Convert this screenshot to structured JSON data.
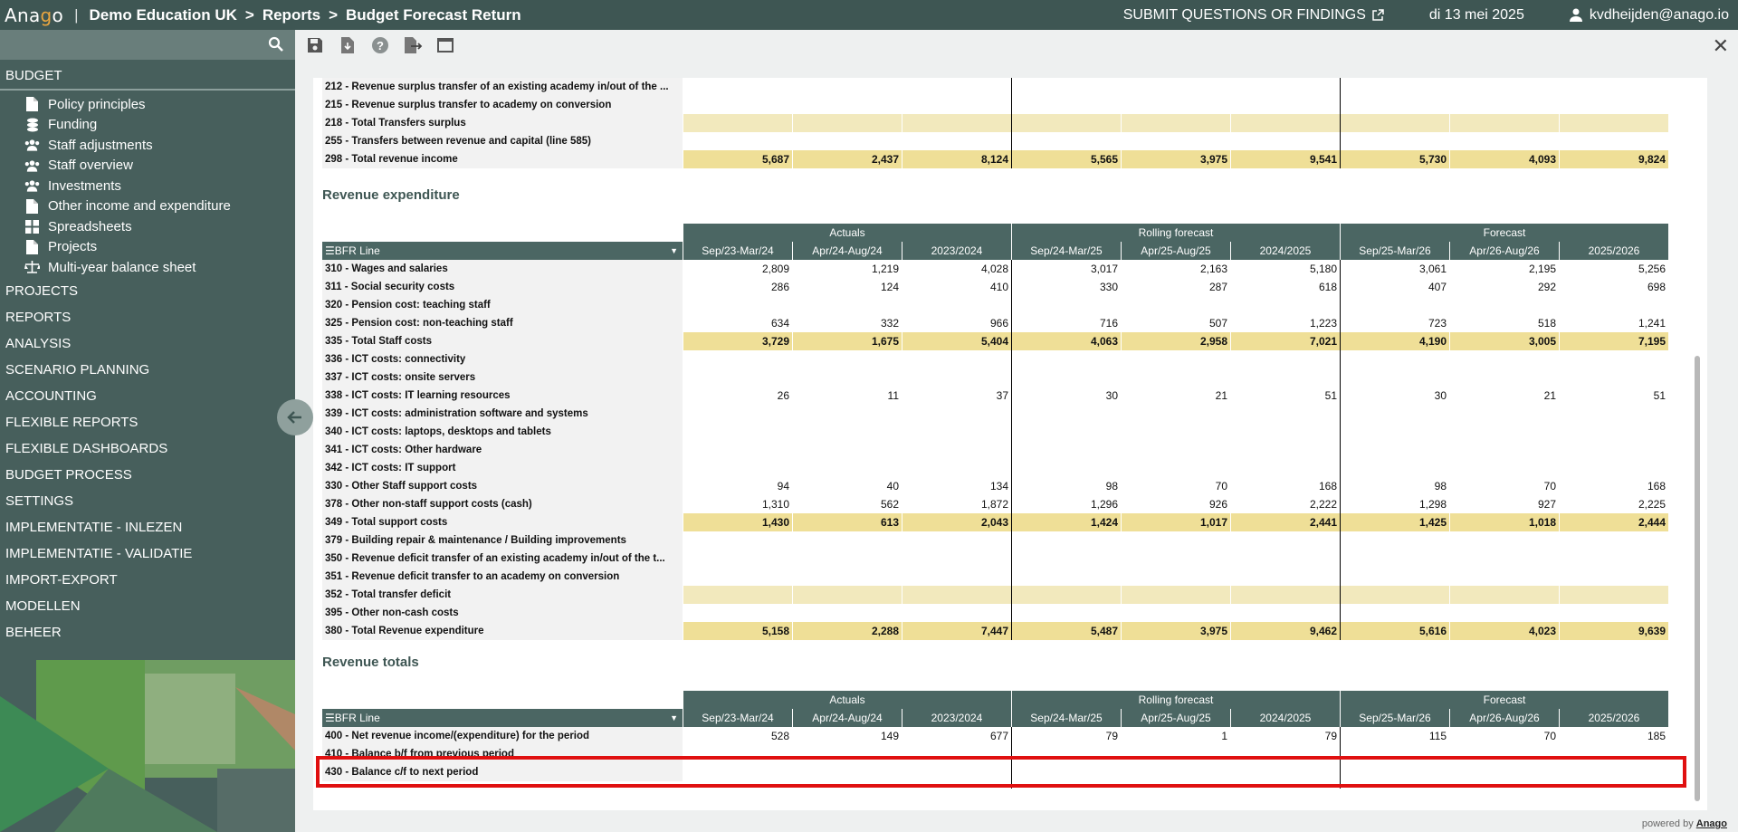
{
  "topbar": {
    "logo_pre": "Ana",
    "logo_o": "g",
    "logo_post": "o",
    "separator": "|",
    "crumb1": "Demo Education UK",
    "crumb2": "Reports",
    "crumb3": "Budget Forecast Return",
    "chevron": ">",
    "submit": "SUBMIT QUESTIONS OR FINDINGS",
    "date": "di 13 mei 2025",
    "user": "kvdheijden@anago.io"
  },
  "sidebar": {
    "section": "BUDGET",
    "items": [
      {
        "label": "Policy principles",
        "icon": "document-icon"
      },
      {
        "label": "Funding",
        "icon": "coins-icon"
      },
      {
        "label": "Staff adjustments",
        "icon": "people-icon"
      },
      {
        "label": "Staff overview",
        "icon": "people-icon"
      },
      {
        "label": "Investments",
        "icon": "people-icon"
      },
      {
        "label": "Other income and expenditure",
        "icon": "document-icon"
      },
      {
        "label": "Spreadsheets",
        "icon": "grid-icon"
      },
      {
        "label": "Projects",
        "icon": "document-icon"
      },
      {
        "label": "Multi-year balance sheet",
        "icon": "scale-icon"
      }
    ],
    "top_items": [
      "PROJECTS",
      "REPORTS",
      "ANALYSIS",
      "SCENARIO PLANNING",
      "ACCOUNTING",
      "FLEXIBLE REPORTS",
      "FLEXIBLE DASHBOARDS",
      "BUDGET PROCESS",
      "SETTINGS",
      "IMPLEMENTATIE - INLEZEN",
      "IMPLEMENTATIE - VALIDATIE",
      "IMPORT-EXPORT",
      "MODELLEN",
      "BEHEER"
    ]
  },
  "toolbar": {
    "close": "✕"
  },
  "footer": {
    "powered": "powered by",
    "brand": "Anago"
  },
  "table": {
    "groups": [
      "Actuals",
      "Rolling forecast",
      "Forecast"
    ],
    "columns": [
      "Sep/23-Mar/24",
      "Apr/24-Aug/24",
      "2023/2024",
      "Sep/24-Mar/25",
      "Apr/25-Aug/25",
      "2024/2025",
      "Sep/25-Mar/26",
      "Apr/26-Aug/26",
      "2025/2026"
    ],
    "bfr_label": "☰BFR Line",
    "income_rows": [
      {
        "label": "212 - Revenue surplus transfer of an existing academy in/out of the ...",
        "values": [
          "",
          "",
          "",
          "",
          "",
          "",
          "",
          "",
          ""
        ],
        "kind": "plain"
      },
      {
        "label": "215 - Revenue surplus transfer to academy on conversion",
        "values": [
          "",
          "",
          "",
          "",
          "",
          "",
          "",
          "",
          ""
        ],
        "kind": "plain"
      },
      {
        "label": "218 - Total Transfers surplus",
        "values": [
          "",
          "",
          "",
          "",
          "",
          "",
          "",
          "",
          ""
        ],
        "kind": "totalempty"
      },
      {
        "label": "255 - Transfers between revenue and capital (line 585)",
        "values": [
          "",
          "",
          "",
          "",
          "",
          "",
          "",
          "",
          ""
        ],
        "kind": "plain"
      },
      {
        "label": "298 - Total revenue income",
        "values": [
          "5,687",
          "2,437",
          "8,124",
          "5,565",
          "3,975",
          "9,541",
          "5,730",
          "4,093",
          "9,824"
        ],
        "kind": "total"
      }
    ],
    "expenditure_title": "Revenue expenditure",
    "expenditure_rows": [
      {
        "label": "310 - Wages and salaries",
        "values": [
          "2,809",
          "1,219",
          "4,028",
          "3,017",
          "2,163",
          "5,180",
          "3,061",
          "2,195",
          "5,256"
        ],
        "kind": "plain"
      },
      {
        "label": "311 - Social security costs",
        "values": [
          "286",
          "124",
          "410",
          "330",
          "287",
          "618",
          "407",
          "292",
          "698"
        ],
        "kind": "plain"
      },
      {
        "label": "320 - Pension cost: teaching staff",
        "values": [
          "",
          "",
          "",
          "",
          "",
          "",
          "",
          "",
          ""
        ],
        "kind": "plain"
      },
      {
        "label": "325 - Pension cost: non-teaching staff",
        "values": [
          "634",
          "332",
          "966",
          "716",
          "507",
          "1,223",
          "723",
          "518",
          "1,241"
        ],
        "kind": "plain"
      },
      {
        "label": "335 - Total Staff costs",
        "values": [
          "3,729",
          "1,675",
          "5,404",
          "4,063",
          "2,958",
          "7,021",
          "4,190",
          "3,005",
          "7,195"
        ],
        "kind": "total"
      },
      {
        "label": "336 - ICT costs: connectivity",
        "values": [
          "",
          "",
          "",
          "",
          "",
          "",
          "",
          "",
          ""
        ],
        "kind": "plain"
      },
      {
        "label": "337 - ICT costs: onsite servers",
        "values": [
          "",
          "",
          "",
          "",
          "",
          "",
          "",
          "",
          ""
        ],
        "kind": "plain"
      },
      {
        "label": "338 - ICT costs: IT learning resources",
        "values": [
          "26",
          "11",
          "37",
          "30",
          "21",
          "51",
          "30",
          "21",
          "51"
        ],
        "kind": "plain"
      },
      {
        "label": "339 - ICT costs: administration software and systems",
        "values": [
          "",
          "",
          "",
          "",
          "",
          "",
          "",
          "",
          ""
        ],
        "kind": "plain"
      },
      {
        "label": "340 - ICT costs: laptops, desktops and tablets",
        "values": [
          "",
          "",
          "",
          "",
          "",
          "",
          "",
          "",
          ""
        ],
        "kind": "plain"
      },
      {
        "label": "341 - ICT costs: Other hardware",
        "values": [
          "",
          "",
          "",
          "",
          "",
          "",
          "",
          "",
          ""
        ],
        "kind": "plain"
      },
      {
        "label": "342 - ICT costs: IT support",
        "values": [
          "",
          "",
          "",
          "",
          "",
          "",
          "",
          "",
          ""
        ],
        "kind": "plain"
      },
      {
        "label": "330 - Other Staff support costs",
        "values": [
          "94",
          "40",
          "134",
          "98",
          "70",
          "168",
          "98",
          "70",
          "168"
        ],
        "kind": "plain"
      },
      {
        "label": "378 - Other non-staff support costs (cash)",
        "values": [
          "1,310",
          "562",
          "1,872",
          "1,296",
          "926",
          "2,222",
          "1,298",
          "927",
          "2,225"
        ],
        "kind": "plain"
      },
      {
        "label": "349 - Total support costs",
        "values": [
          "1,430",
          "613",
          "2,043",
          "1,424",
          "1,017",
          "2,441",
          "1,425",
          "1,018",
          "2,444"
        ],
        "kind": "total"
      },
      {
        "label": "379 - Building repair & maintenance / Building improvements",
        "values": [
          "",
          "",
          "",
          "",
          "",
          "",
          "",
          "",
          ""
        ],
        "kind": "plain"
      },
      {
        "label": "350 - Revenue deficit transfer of an existing academy in/out of the t...",
        "values": [
          "",
          "",
          "",
          "",
          "",
          "",
          "",
          "",
          ""
        ],
        "kind": "plain"
      },
      {
        "label": "351 - Revenue deficit transfer to an academy on conversion",
        "values": [
          "",
          "",
          "",
          "",
          "",
          "",
          "",
          "",
          ""
        ],
        "kind": "plain"
      },
      {
        "label": "352 - Total transfer deficit",
        "values": [
          "",
          "",
          "",
          "",
          "",
          "",
          "",
          "",
          ""
        ],
        "kind": "totalempty"
      },
      {
        "label": "395 - Other non-cash costs",
        "values": [
          "",
          "",
          "",
          "",
          "",
          "",
          "",
          "",
          ""
        ],
        "kind": "plain"
      },
      {
        "label": "380 - Total Revenue expenditure",
        "values": [
          "5,158",
          "2,288",
          "7,447",
          "5,487",
          "3,975",
          "9,462",
          "5,616",
          "4,023",
          "9,639"
        ],
        "kind": "total"
      }
    ],
    "totals_title": "Revenue totals",
    "totals_rows": [
      {
        "label": "400 - Net revenue income/(expenditure) for the period",
        "values": [
          "528",
          "149",
          "677",
          "79",
          "1",
          "79",
          "115",
          "70",
          "185"
        ],
        "kind": "plain"
      },
      {
        "label": "410 - Balance b/f from previous period",
        "values": [
          "",
          "",
          "",
          "",
          "",
          "",
          "",
          "",
          ""
        ],
        "kind": "plain"
      },
      {
        "label": "430 - Balance c/f to next period",
        "values": [
          "",
          "",
          "",
          "",
          "",
          "",
          "",
          "",
          ""
        ],
        "kind": "plain"
      }
    ]
  }
}
